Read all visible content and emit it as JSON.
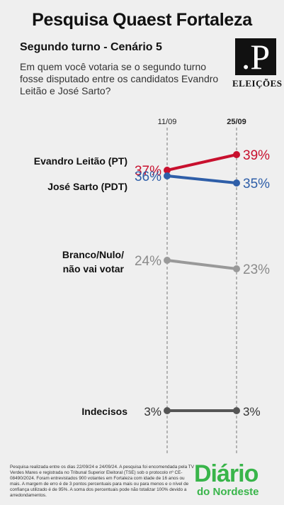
{
  "header": {
    "title": "Pesquisa Quaest Fortaleza",
    "subtitle": "Segundo turno - Cenário 5",
    "question": "Em quem você votaria se o segundo turno fosse disputado entre os candidatos Evandro Leitão e José Sarto?"
  },
  "logo": {
    "mark": ".P",
    "label": "ELEIÇÕES"
  },
  "chart_data": {
    "type": "line",
    "x": [
      "11/09",
      "25/09"
    ],
    "series": [
      {
        "name": "Evandro Leitão (PT)",
        "values": [
          37,
          39
        ],
        "labels": [
          "37%",
          "39%"
        ],
        "color": "#c8102e"
      },
      {
        "name": "José Sarto (PDT)",
        "values": [
          36,
          35
        ],
        "labels": [
          "36%",
          "35%"
        ],
        "color": "#2e5ea8"
      },
      {
        "name": "Branco/Nulo/ não vai votar",
        "values": [
          24,
          23
        ],
        "labels": [
          "24%",
          "23%"
        ],
        "color": "#999999"
      },
      {
        "name": "Indecisos",
        "values": [
          3,
          3
        ],
        "labels": [
          "3%",
          "3%"
        ],
        "color": "#555555"
      }
    ]
  },
  "footer": {
    "note": "Pesquisa realizada entre os dias 22/09/24 e 24/09/24. A pesquisa foi encomendada pela TV Verdes Mares e registrada no Tribunal Superior Eleitoral (TSE) sob o protocolo nº CE-08490/2024. Foram entrevistados 900 votantes em Fortaleza com idade de 16 anos ou mais. A margem de erro é de 3 pontos percentuais para mais ou para menos e o nível de confiança utilizado é de 95%. A soma dos percentuais pode não totalizar 100% devido a arredondamentos.",
    "brand_line1": "Diário",
    "brand_line2": "do Nordeste"
  }
}
